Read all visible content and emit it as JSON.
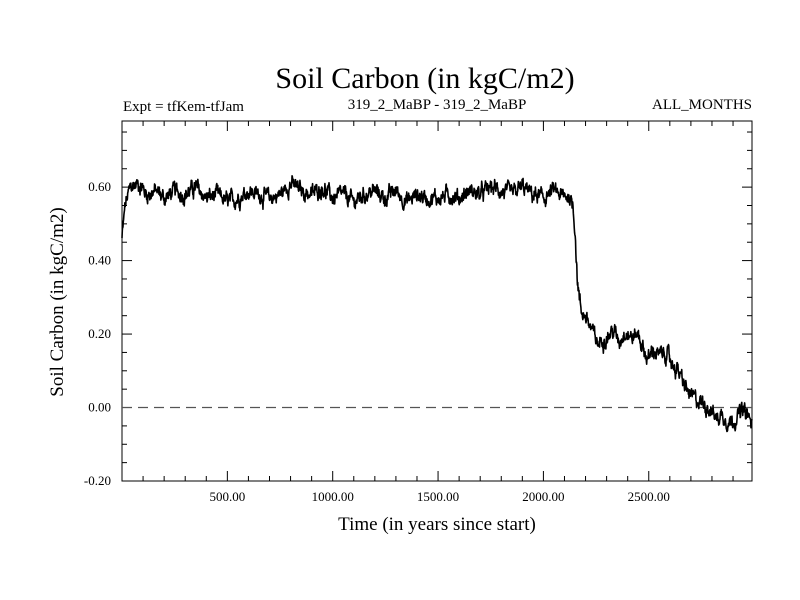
{
  "chart_data": {
    "type": "line",
    "title": "Soil Carbon (in kgC/m2)",
    "subtitle_left": "Expt = tfKem-tfJam",
    "subtitle_center": "319_2_MaBP - 319_2_MaBP",
    "subtitle_right": "ALL_MONTHS",
    "xlabel": "Time (in years since start)",
    "ylabel": "Soil Carbon (in kgC/m2)",
    "xlim": [
      0,
      2990
    ],
    "ylim": [
      -0.2,
      0.78
    ],
    "x_ticks": [
      {
        "value": 500,
        "label": "500.00"
      },
      {
        "value": 1000,
        "label": "1000.00"
      },
      {
        "value": 1500,
        "label": "1500.00"
      },
      {
        "value": 2000,
        "label": "2000.00"
      },
      {
        "value": 2500,
        "label": "2500.00"
      }
    ],
    "y_ticks": [
      {
        "value": 0.6,
        "label": "0.60"
      },
      {
        "value": 0.4,
        "label": "0.40"
      },
      {
        "value": 0.2,
        "label": "0.20"
      },
      {
        "value": 0.0,
        "label": "0.00"
      },
      {
        "value": -0.2,
        "label": "-0.20"
      }
    ],
    "reference_line": {
      "y": 0.0,
      "style": "dashed"
    },
    "grid": false,
    "series": [
      {
        "x": [
          0,
          15,
          40,
          80,
          120,
          160,
          200,
          250,
          300,
          350,
          400,
          450,
          500,
          550,
          600,
          650,
          700,
          750,
          800,
          850,
          900,
          950,
          1000,
          1050,
          1100,
          1150,
          1200,
          1250,
          1300,
          1350,
          1400,
          1450,
          1500,
          1550,
          1600,
          1650,
          1700,
          1750,
          1800,
          1850,
          1900,
          1950,
          2000,
          2050,
          2100,
          2120,
          2140,
          2150,
          2160,
          2170,
          2180,
          2200,
          2230,
          2260,
          2280,
          2300,
          2330,
          2360,
          2390,
          2420,
          2450,
          2480,
          2500,
          2520,
          2550,
          2580,
          2610,
          2640,
          2660,
          2680,
          2700,
          2730,
          2760,
          2790,
          2820,
          2850,
          2880,
          2910,
          2940,
          2970,
          2990
        ],
        "y": [
          0.46,
          0.55,
          0.6,
          0.61,
          0.58,
          0.59,
          0.57,
          0.59,
          0.58,
          0.6,
          0.57,
          0.58,
          0.56,
          0.57,
          0.59,
          0.58,
          0.57,
          0.58,
          0.61,
          0.59,
          0.58,
          0.6,
          0.57,
          0.58,
          0.56,
          0.58,
          0.59,
          0.57,
          0.59,
          0.56,
          0.58,
          0.57,
          0.57,
          0.58,
          0.57,
          0.59,
          0.58,
          0.6,
          0.59,
          0.58,
          0.6,
          0.58,
          0.57,
          0.59,
          0.57,
          0.58,
          0.55,
          0.49,
          0.36,
          0.3,
          0.26,
          0.25,
          0.21,
          0.17,
          0.19,
          0.19,
          0.21,
          0.18,
          0.21,
          0.19,
          0.2,
          0.15,
          0.13,
          0.16,
          0.14,
          0.15,
          0.12,
          0.1,
          0.07,
          0.05,
          0.03,
          0.02,
          0.01,
          0.0,
          -0.03,
          -0.02,
          -0.04,
          -0.03,
          -0.01,
          -0.02,
          -0.05
        ],
        "noise_amplitude": 0.025
      }
    ]
  }
}
